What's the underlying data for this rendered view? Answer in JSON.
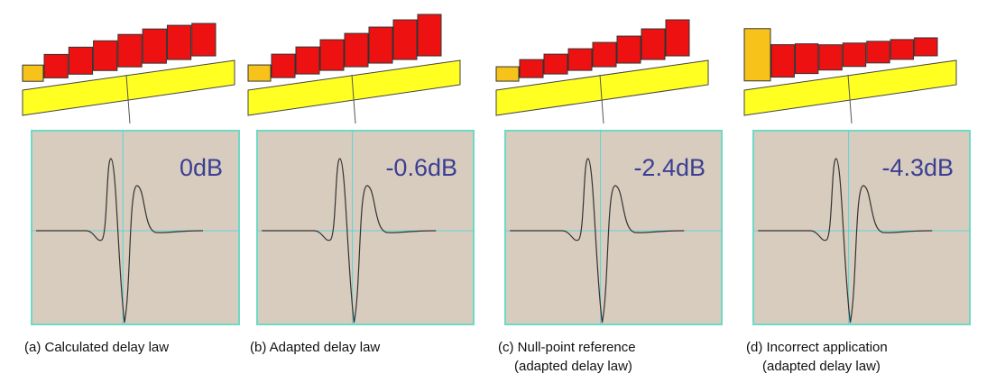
{
  "panels": [
    {
      "level": "0dB",
      "caption": [
        "(a) Calculated delay law"
      ]
    },
    {
      "level": "-0.6dB",
      "caption": [
        "(b) Adapted delay law"
      ]
    },
    {
      "level": "-2.4dB",
      "caption": [
        "(c) Null-point reference",
        "(adapted delay law)"
      ]
    },
    {
      "level": "-4.3dB",
      "caption": [
        "(d) Incorrect application",
        "(adapted delay law)"
      ]
    }
  ]
}
